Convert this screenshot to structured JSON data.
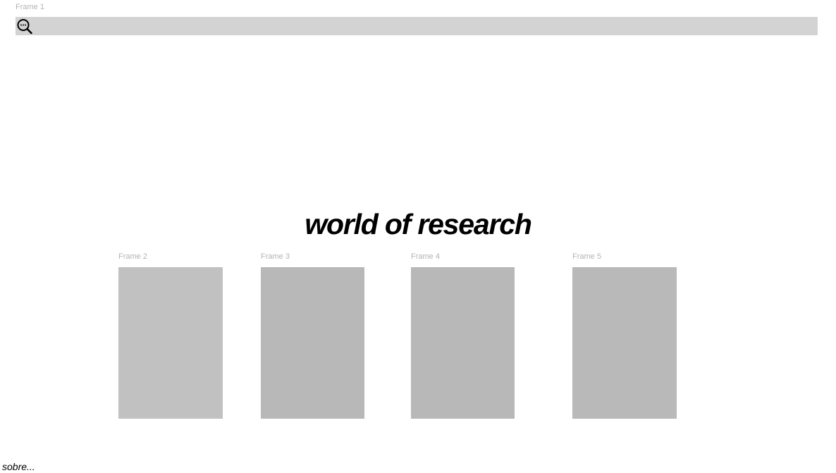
{
  "frames": {
    "frame1_label": "Frame 1",
    "frame2_label": "Frame 2",
    "frame3_label": "Frame 3",
    "frame4_label": "Frame 4",
    "frame5_label": "Frame 5"
  },
  "search": {
    "icon": "zoom-out-search-icon"
  },
  "headline": "world of research",
  "footer": {
    "about_link": "sobre..."
  },
  "colors": {
    "search_bar": "#d3d3d3",
    "card_light": "#c1c1c1",
    "card": "#b8b8b8",
    "frame_label": "#b3b3b3",
    "text": "#000000"
  }
}
